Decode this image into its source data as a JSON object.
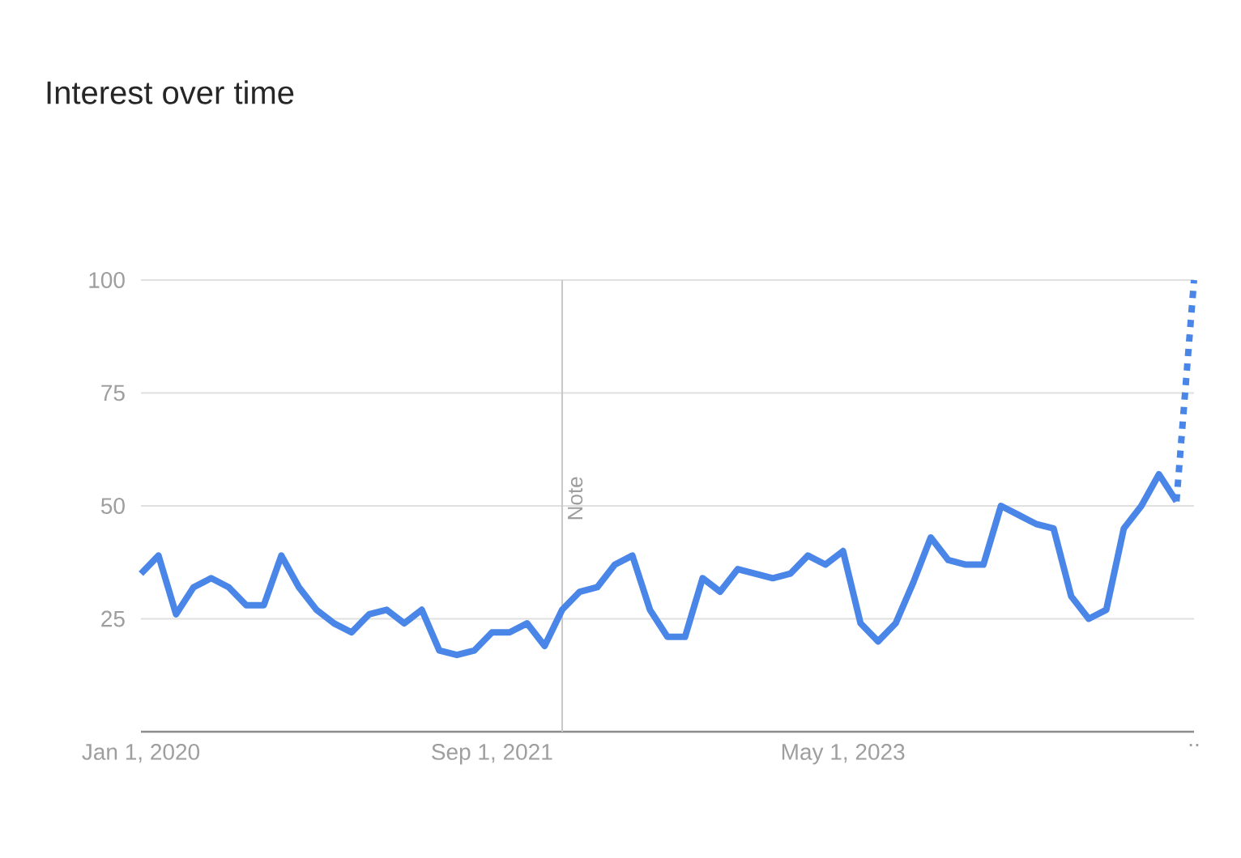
{
  "chart_data": {
    "type": "line",
    "title": "Interest over time",
    "x": [
      "2020-01",
      "2020-02",
      "2020-03",
      "2020-04",
      "2020-05",
      "2020-06",
      "2020-07",
      "2020-08",
      "2020-09",
      "2020-10",
      "2020-11",
      "2020-12",
      "2021-01",
      "2021-02",
      "2021-03",
      "2021-04",
      "2021-05",
      "2021-06",
      "2021-07",
      "2021-08",
      "2021-09",
      "2021-10",
      "2021-11",
      "2021-12",
      "2022-01",
      "2022-02",
      "2022-03",
      "2022-04",
      "2022-05",
      "2022-06",
      "2022-07",
      "2022-08",
      "2022-09",
      "2022-10",
      "2022-11",
      "2022-12",
      "2023-01",
      "2023-02",
      "2023-03",
      "2023-04",
      "2023-05",
      "2023-06",
      "2023-07",
      "2023-08",
      "2023-09",
      "2023-10",
      "2023-11",
      "2023-12",
      "2024-01",
      "2024-02",
      "2024-03",
      "2024-04",
      "2024-05",
      "2024-06",
      "2024-07",
      "2024-08",
      "2024-09",
      "2024-10",
      "2024-11",
      "2024-12"
    ],
    "series": [
      {
        "color": "#4a86e8",
        "line_style": "solid",
        "values": [
          35,
          39,
          26,
          32,
          34,
          32,
          28,
          28,
          39,
          32,
          27,
          24,
          22,
          26,
          27,
          24,
          27,
          18,
          17,
          18,
          22,
          22,
          24,
          19,
          27,
          31,
          32,
          37,
          39,
          27,
          21,
          21,
          34,
          31,
          36,
          35,
          34,
          35,
          39,
          37,
          40,
          24,
          20,
          24,
          33,
          43,
          38,
          37,
          37,
          50,
          48,
          46,
          45,
          30,
          25,
          27,
          45,
          50,
          57,
          51
        ]
      },
      {
        "color": "#4a86e8",
        "line_style": "dotted",
        "x": [
          "2024-12",
          "2025-01"
        ],
        "values": [
          51,
          100
        ]
      }
    ],
    "xlim": [
      "2020-01",
      "2025-01"
    ],
    "xticks": [
      {
        "value": "2020-01",
        "label": "Jan 1, 2020"
      },
      {
        "value": "2021-09",
        "label": "Sep 1, 2021"
      },
      {
        "value": "2023-05",
        "label": "May 1, 2023"
      },
      {
        "value": "2025-01",
        "label": ".."
      }
    ],
    "ylim": [
      0,
      100
    ],
    "yticks": [
      25,
      50,
      75,
      100
    ],
    "grid": "y",
    "marker": "none",
    "ref_lines": [
      {
        "axis": "x",
        "value": "2022-01",
        "label": "Note",
        "color": "#c8c8c8"
      }
    ]
  }
}
